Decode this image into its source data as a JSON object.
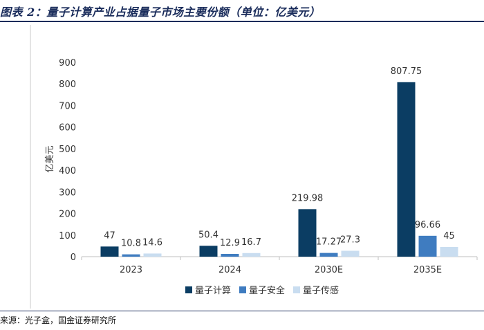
{
  "header": {
    "title": "图表 2：量子计算产业占据量子市场主要份额（单位：亿美元）"
  },
  "footer": {
    "source": "来源：光子盒，国金证券研究所"
  },
  "colors": {
    "series": [
      "#0b3d63",
      "#3f7cc0",
      "#c9ddf0"
    ],
    "rule": "#1a2c5b"
  },
  "chart_data": {
    "type": "bar",
    "categories": [
      "2023",
      "2024",
      "2030E",
      "2035E"
    ],
    "series": [
      {
        "name": "量子计算",
        "values": [
          47,
          50.4,
          219.98,
          807.75
        ],
        "labels": [
          "47",
          "50.4",
          "219.98",
          "807.75"
        ]
      },
      {
        "name": "量子安全",
        "values": [
          10.8,
          12.9,
          17.27,
          96.66
        ],
        "labels": [
          "10.8",
          "12.9",
          "17.27",
          "96.66"
        ]
      },
      {
        "name": "量子传感",
        "values": [
          14.6,
          16.7,
          27.3,
          45
        ],
        "labels": [
          "14.6",
          "16.7",
          "27.3",
          "45"
        ]
      }
    ],
    "ylabel": "亿美元",
    "ylim": [
      0,
      900
    ],
    "yticks": [
      "0",
      "100",
      "200",
      "300",
      "400",
      "500",
      "600",
      "700",
      "800",
      "900"
    ],
    "grid": false,
    "legend_position": "bottom"
  }
}
